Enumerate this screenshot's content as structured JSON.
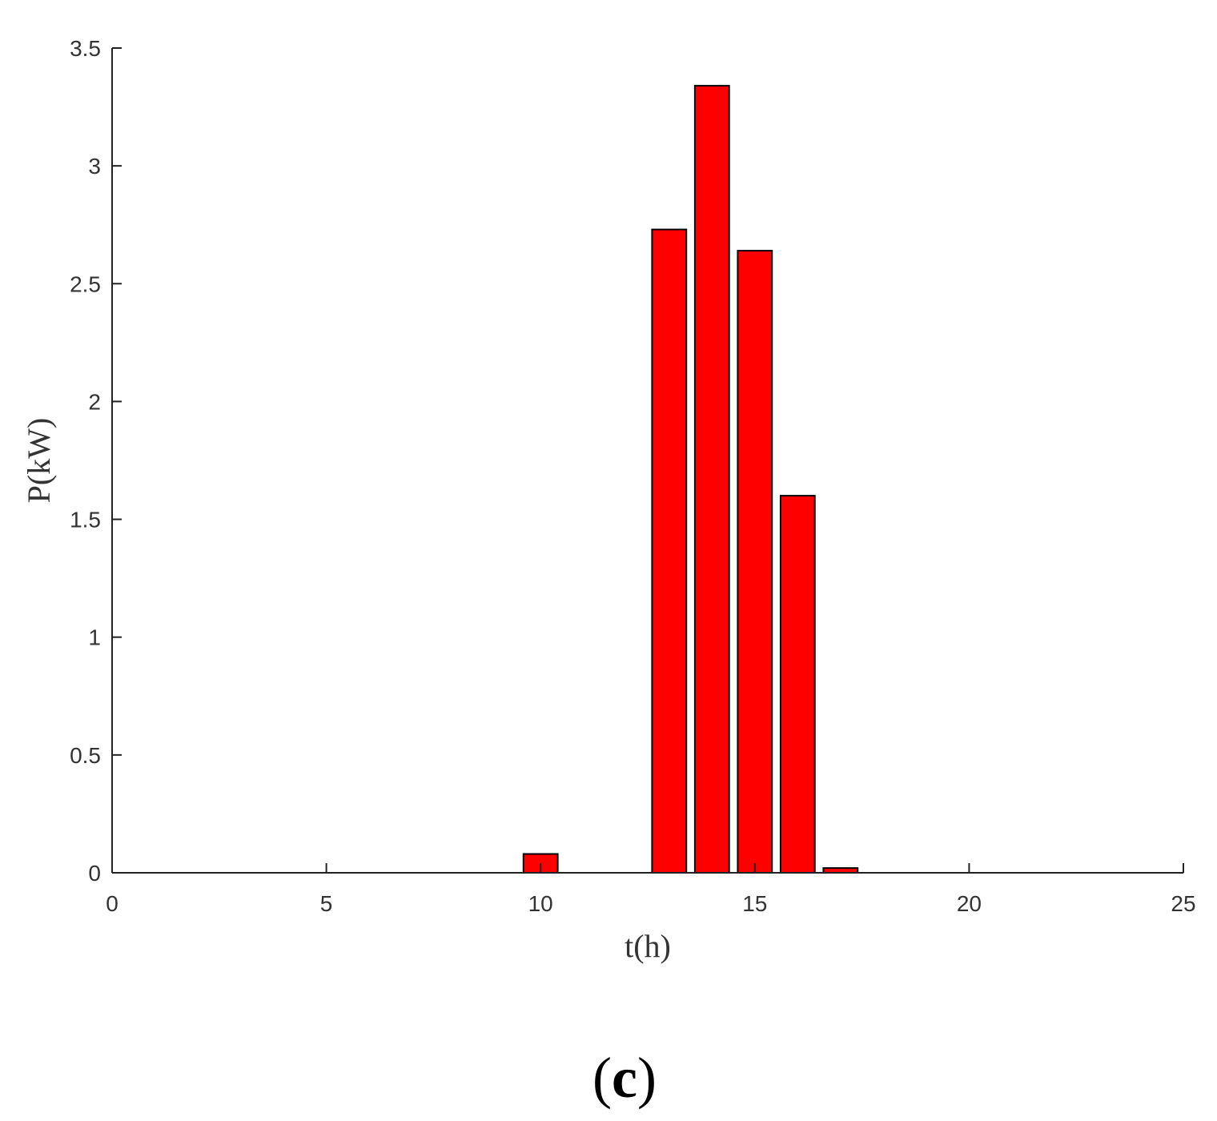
{
  "chart_data": {
    "type": "bar",
    "x": [
      10,
      13,
      14,
      15,
      16,
      17
    ],
    "values": [
      0.08,
      2.73,
      3.34,
      2.64,
      1.6,
      0.02
    ],
    "xlabel": "t(h)",
    "ylabel": "P(kW)",
    "xlim": [
      0,
      25
    ],
    "ylim": [
      0,
      3.5
    ],
    "xticks": [
      0,
      5,
      10,
      15,
      20,
      25
    ],
    "yticks": [
      0,
      0.5,
      1,
      1.5,
      2,
      2.5,
      3,
      3.5
    ],
    "xtick_labels": [
      "0",
      "5",
      "10",
      "15",
      "20",
      "25"
    ],
    "ytick_labels": [
      "0",
      "0.5",
      "1",
      "1.5",
      "2",
      "2.5",
      "3",
      "3.5"
    ],
    "bar_color": "#ff0000",
    "bar_edge_color": "#000000",
    "grid": false,
    "legend": "none"
  },
  "panel_label": {
    "open": "(",
    "letter": "c",
    "close": ")"
  }
}
